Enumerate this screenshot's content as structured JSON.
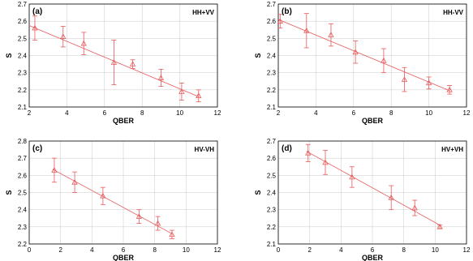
{
  "chart_data": [
    {
      "type": "scatter",
      "panel_label": "(a)",
      "legend": "HH+VV",
      "xlabel": "QBER",
      "ylabel": "S",
      "xlim": [
        2,
        12
      ],
      "ylim": [
        2.1,
        2.7
      ],
      "xticks": [
        2,
        4,
        6,
        8,
        10,
        12
      ],
      "yticks": [
        2.1,
        2.2,
        2.3,
        2.4,
        2.5,
        2.6,
        2.7
      ],
      "grid": true,
      "points": [
        {
          "x": 2.3,
          "y": 2.56,
          "err": 0.07
        },
        {
          "x": 3.8,
          "y": 2.51,
          "err": 0.06
        },
        {
          "x": 4.9,
          "y": 2.47,
          "err": 0.065
        },
        {
          "x": 6.5,
          "y": 2.36,
          "err": 0.13
        },
        {
          "x": 7.5,
          "y": 2.35,
          "err": 0.025
        },
        {
          "x": 9.0,
          "y": 2.27,
          "err": 0.05
        },
        {
          "x": 10.1,
          "y": 2.19,
          "err": 0.05
        },
        {
          "x": 11.0,
          "y": 2.165,
          "err": 0.035
        }
      ],
      "fit": [
        [
          2.0,
          2.575
        ],
        [
          11.0,
          2.16
        ]
      ]
    },
    {
      "type": "scatter",
      "panel_label": "(b)",
      "legend": "HH-VV",
      "xlabel": "QBER",
      "ylabel": "S",
      "xlim": [
        2,
        12
      ],
      "ylim": [
        2.1,
        2.7
      ],
      "xticks": [
        2,
        4,
        6,
        8,
        10,
        12
      ],
      "yticks": [
        2.1,
        2.2,
        2.3,
        2.4,
        2.5,
        2.6,
        2.7
      ],
      "grid": true,
      "points": [
        {
          "x": 2.1,
          "y": 2.6,
          "err": 0.04
        },
        {
          "x": 3.5,
          "y": 2.545,
          "err": 0.1
        },
        {
          "x": 4.8,
          "y": 2.52,
          "err": 0.065
        },
        {
          "x": 6.1,
          "y": 2.42,
          "err": 0.065
        },
        {
          "x": 7.6,
          "y": 2.37,
          "err": 0.07
        },
        {
          "x": 8.7,
          "y": 2.26,
          "err": 0.07
        },
        {
          "x": 10.0,
          "y": 2.24,
          "err": 0.035
        },
        {
          "x": 11.1,
          "y": 2.2,
          "err": 0.025
        }
      ],
      "fit": [
        [
          2.0,
          2.61
        ],
        [
          11.1,
          2.195
        ]
      ]
    },
    {
      "type": "scatter",
      "panel_label": "(c)",
      "legend": "HV-VH",
      "xlabel": "QBER",
      "ylabel": "S",
      "xlim": [
        0,
        12
      ],
      "ylim": [
        2.2,
        2.8
      ],
      "xticks": [
        0,
        2,
        4,
        6,
        8,
        10,
        12
      ],
      "yticks": [
        2.2,
        2.3,
        2.4,
        2.5,
        2.6,
        2.7,
        2.8
      ],
      "grid": true,
      "points": [
        {
          "x": 1.6,
          "y": 2.63,
          "err": 0.07
        },
        {
          "x": 2.9,
          "y": 2.56,
          "err": 0.06
        },
        {
          "x": 4.7,
          "y": 2.48,
          "err": 0.05
        },
        {
          "x": 7.0,
          "y": 2.36,
          "err": 0.04
        },
        {
          "x": 8.2,
          "y": 2.32,
          "err": 0.04
        },
        {
          "x": 9.1,
          "y": 2.255,
          "err": 0.025
        }
      ],
      "fit": [
        [
          1.5,
          2.635
        ],
        [
          9.1,
          2.26
        ]
      ]
    },
    {
      "type": "scatter",
      "panel_label": "(d)",
      "legend": "HV+VH",
      "xlabel": "QBER",
      "ylabel": "S",
      "xlim": [
        0,
        12
      ],
      "ylim": [
        2.1,
        2.7
      ],
      "xticks": [
        0,
        2,
        4,
        6,
        8,
        10,
        12
      ],
      "yticks": [
        2.1,
        2.2,
        2.3,
        2.4,
        2.5,
        2.6,
        2.7
      ],
      "grid": true,
      "points": [
        {
          "x": 1.9,
          "y": 2.63,
          "err": 0.05
        },
        {
          "x": 3.0,
          "y": 2.575,
          "err": 0.07
        },
        {
          "x": 4.7,
          "y": 2.49,
          "err": 0.06
        },
        {
          "x": 7.2,
          "y": 2.37,
          "err": 0.07
        },
        {
          "x": 8.7,
          "y": 2.31,
          "err": 0.045
        },
        {
          "x": 10.3,
          "y": 2.2,
          "err": 0.01
        }
      ],
      "fit": [
        [
          1.8,
          2.64
        ],
        [
          10.3,
          2.21
        ]
      ]
    }
  ]
}
